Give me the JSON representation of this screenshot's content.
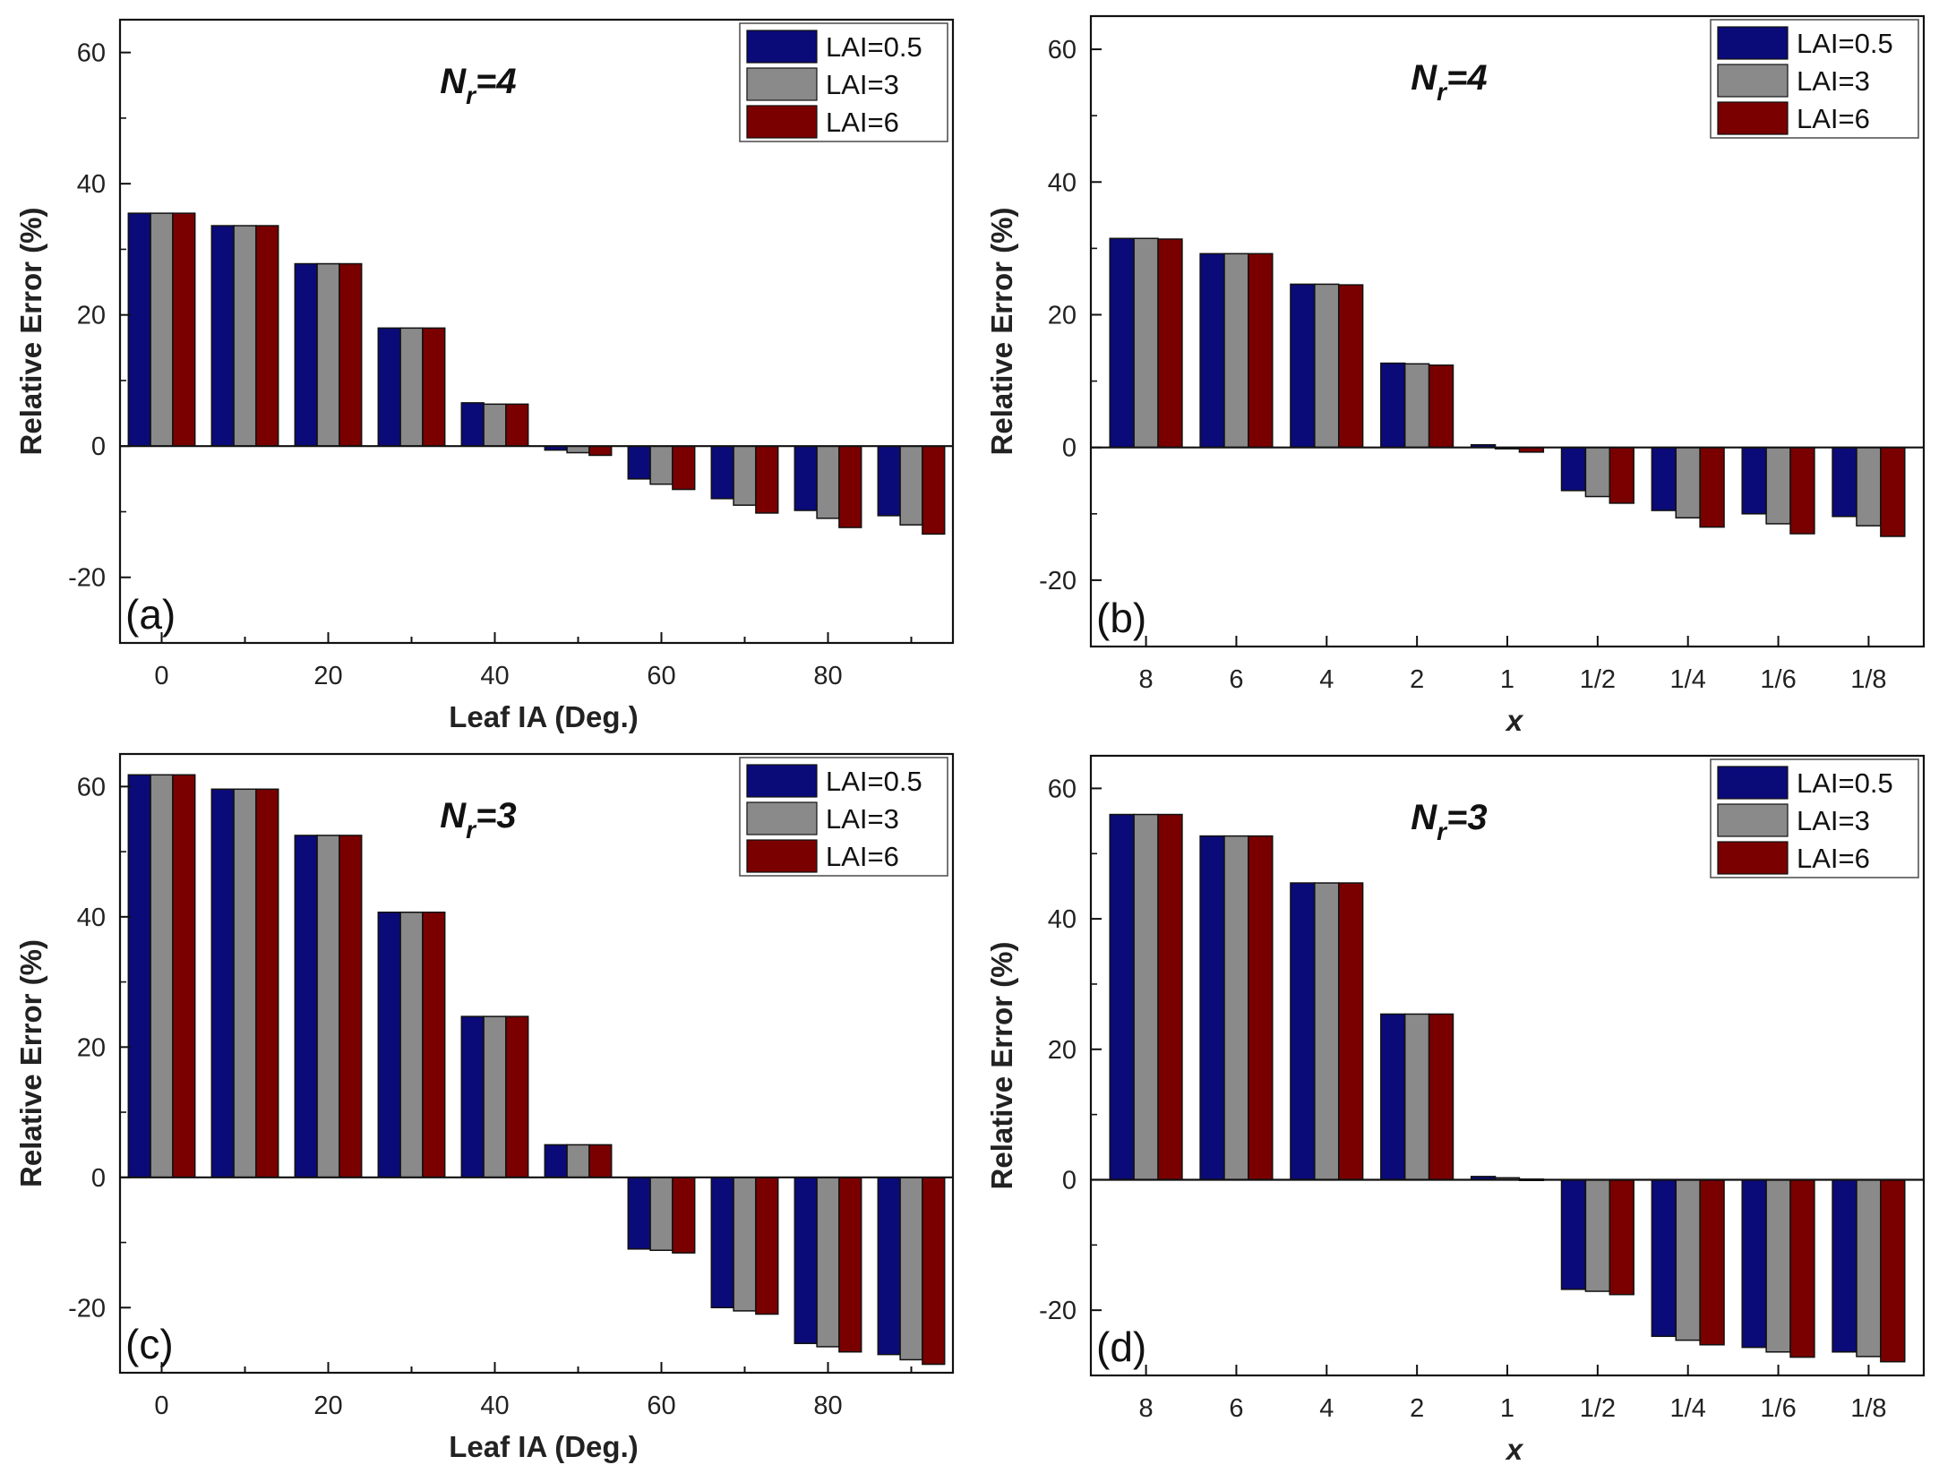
{
  "chart_data": [
    {
      "type": "bar",
      "panel": "(a)",
      "title_main": "N",
      "title_sub": "r",
      "title_rest": "=4",
      "xlabel": "Leaf IA (Deg.)",
      "ylabel": "Relative Error (%)",
      "xlim": [
        -5,
        95
      ],
      "ylim": [
        -30,
        65
      ],
      "x": [
        0,
        10,
        20,
        30,
        40,
        50,
        60,
        70,
        80,
        90
      ],
      "x_ticks": [
        0,
        20,
        40,
        60,
        80
      ],
      "x_tick_labels": [
        "0",
        "20",
        "40",
        "60",
        "80"
      ],
      "y_ticks": [
        -20,
        0,
        20,
        40,
        60
      ],
      "y_tick_labels": [
        "-20",
        "0",
        "20",
        "40",
        "60"
      ],
      "legend": "top-right",
      "series": [
        {
          "name": "LAI=0.5",
          "color": "#0a0a78",
          "values": [
            35.5,
            33.6,
            27.8,
            18.0,
            6.6,
            -0.6,
            -5.0,
            -8.0,
            -9.8,
            -10.6
          ]
        },
        {
          "name": "LAI=3",
          "color": "#8a8a8a",
          "values": [
            35.5,
            33.6,
            27.8,
            18.0,
            6.4,
            -1.0,
            -5.8,
            -9.0,
            -11.0,
            -12.0
          ]
        },
        {
          "name": "LAI=6",
          "color": "#7a0000",
          "values": [
            35.5,
            33.6,
            27.8,
            18.0,
            6.4,
            -1.4,
            -6.6,
            -10.2,
            -12.4,
            -13.4
          ]
        }
      ]
    },
    {
      "type": "bar",
      "panel": "(b)",
      "title_main": "N",
      "title_sub": "r",
      "title_rest": "=4",
      "xlabel": "x",
      "ylabel": "Relative Error (%)",
      "categories": [
        "8",
        "6",
        "4",
        "2",
        "1",
        "1/2",
        "1/4",
        "1/6",
        "1/8"
      ],
      "ylim": [
        -30,
        65
      ],
      "y_ticks": [
        -20,
        0,
        20,
        40,
        60
      ],
      "y_tick_labels": [
        "-20",
        "0",
        "20",
        "40",
        "60"
      ],
      "legend": "top-right",
      "series": [
        {
          "name": "LAI=0.5",
          "color": "#0a0a78",
          "values": [
            31.5,
            29.2,
            24.6,
            12.7,
            0.4,
            -6.5,
            -9.5,
            -10.0,
            -10.4
          ]
        },
        {
          "name": "LAI=3",
          "color": "#8a8a8a",
          "values": [
            31.5,
            29.2,
            24.6,
            12.6,
            0.0,
            -7.4,
            -10.6,
            -11.5,
            -11.8
          ]
        },
        {
          "name": "LAI=6",
          "color": "#7a0000",
          "values": [
            31.4,
            29.2,
            24.5,
            12.4,
            -0.7,
            -8.4,
            -12.0,
            -13.0,
            -13.4
          ]
        }
      ]
    },
    {
      "type": "bar",
      "panel": "(c)",
      "title_main": "N",
      "title_sub": "r",
      "title_rest": "=3",
      "xlabel": "Leaf IA (Deg.)",
      "ylabel": "Relative Error (%)",
      "xlim": [
        -5,
        95
      ],
      "ylim": [
        -30,
        65
      ],
      "x": [
        0,
        10,
        20,
        30,
        40,
        50,
        60,
        70,
        80,
        90
      ],
      "x_ticks": [
        0,
        20,
        40,
        60,
        80
      ],
      "x_tick_labels": [
        "0",
        "20",
        "40",
        "60",
        "80"
      ],
      "y_ticks": [
        -20,
        0,
        20,
        40,
        60
      ],
      "y_tick_labels": [
        "-20",
        "0",
        "20",
        "40",
        "60"
      ],
      "legend": "top-right",
      "series": [
        {
          "name": "LAI=0.5",
          "color": "#0a0a78",
          "values": [
            61.8,
            59.6,
            52.5,
            40.7,
            24.7,
            5.0,
            -11.0,
            -20.0,
            -25.5,
            -27.2
          ]
        },
        {
          "name": "LAI=3",
          "color": "#8a8a8a",
          "values": [
            61.8,
            59.6,
            52.5,
            40.7,
            24.7,
            5.0,
            -11.2,
            -20.5,
            -26.0,
            -28.0
          ]
        },
        {
          "name": "LAI=6",
          "color": "#7a0000",
          "values": [
            61.8,
            59.6,
            52.5,
            40.7,
            24.7,
            5.0,
            -11.6,
            -21.0,
            -26.8,
            -28.7
          ]
        }
      ]
    },
    {
      "type": "bar",
      "panel": "(d)",
      "title_main": "N",
      "title_sub": "r",
      "title_rest": "=3",
      "xlabel": "x",
      "ylabel": "Relative Error (%)",
      "categories": [
        "8",
        "6",
        "4",
        "2",
        "1",
        "1/2",
        "1/4",
        "1/6",
        "1/8"
      ],
      "ylim": [
        -30,
        65
      ],
      "y_ticks": [
        -20,
        0,
        20,
        40,
        60
      ],
      "y_tick_labels": [
        "-20",
        "0",
        "20",
        "40",
        "60"
      ],
      "legend": "top-right",
      "series": [
        {
          "name": "LAI=0.5",
          "color": "#0a0a78",
          "values": [
            56.0,
            52.7,
            45.5,
            25.4,
            0.5,
            -16.8,
            -24.0,
            -25.7,
            -26.4
          ]
        },
        {
          "name": "LAI=3",
          "color": "#8a8a8a",
          "values": [
            56.0,
            52.7,
            45.5,
            25.4,
            0.3,
            -17.1,
            -24.6,
            -26.4,
            -27.1
          ]
        },
        {
          "name": "LAI=6",
          "color": "#7a0000",
          "values": [
            56.0,
            52.7,
            45.5,
            25.4,
            0.1,
            -17.6,
            -25.3,
            -27.2,
            -27.9
          ]
        }
      ]
    }
  ]
}
